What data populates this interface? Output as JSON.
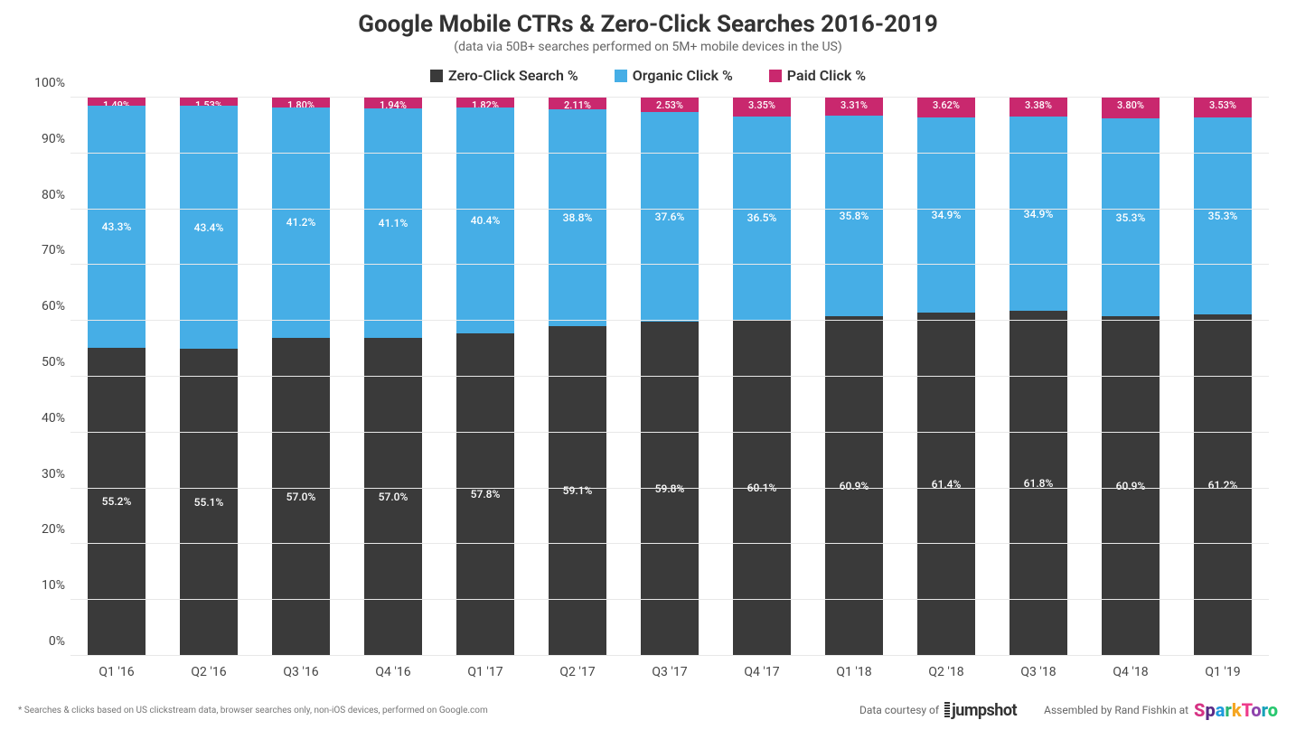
{
  "title": "Google Mobile CTRs & Zero-Click Searches 2016-2019",
  "subtitle": "(data via 50B+ searches performed on 5M+ mobile devices in the US)",
  "legend": [
    {
      "label": "Zero-Click Search %",
      "color": "#3a3a3a"
    },
    {
      "label": "Organic Click %",
      "color": "#46aee6"
    },
    {
      "label": "Paid Click %",
      "color": "#c9286e"
    }
  ],
  "chart": {
    "type": "stacked-bar",
    "ylim": [
      0,
      100
    ],
    "ytick_step": 10,
    "ytick_suffix": "%",
    "grid_color": "#e8e8e8",
    "background_color": "#ffffff",
    "bar_width_ratio": 0.62,
    "title_fontsize": 26,
    "subtitle_fontsize": 14,
    "axis_label_fontsize": 14,
    "segment_label_fontsize": 12,
    "series_colors": {
      "zero_click": "#3a3a3a",
      "organic": "#46aee6",
      "paid": "#c9286e"
    },
    "label_color": "#ffffff",
    "categories": [
      "Q1 '16",
      "Q2 '16",
      "Q3 '16",
      "Q4 '16",
      "Q1 '17",
      "Q2 '17",
      "Q3 '17",
      "Q4 '17",
      "Q1 '18",
      "Q2 '18",
      "Q3 '18",
      "Q4 '18",
      "Q1 '19"
    ],
    "data": [
      {
        "zero_click": 55.2,
        "organic": 43.3,
        "paid": 1.49,
        "paid_label": "1.49%",
        "zero_label": "55.2%",
        "org_label": "43.3%"
      },
      {
        "zero_click": 55.1,
        "organic": 43.4,
        "paid": 1.53,
        "paid_label": "1.53%",
        "zero_label": "55.1%",
        "org_label": "43.4%"
      },
      {
        "zero_click": 57.0,
        "organic": 41.2,
        "paid": 1.8,
        "paid_label": "1.80%",
        "zero_label": "57.0%",
        "org_label": "41.2%"
      },
      {
        "zero_click": 57.0,
        "organic": 41.1,
        "paid": 1.94,
        "paid_label": "1.94%",
        "zero_label": "57.0%",
        "org_label": "41.1%"
      },
      {
        "zero_click": 57.8,
        "organic": 40.4,
        "paid": 1.82,
        "paid_label": "1.82%",
        "zero_label": "57.8%",
        "org_label": "40.4%"
      },
      {
        "zero_click": 59.1,
        "organic": 38.8,
        "paid": 2.11,
        "paid_label": "2.11%",
        "zero_label": "59.1%",
        "org_label": "38.8%"
      },
      {
        "zero_click": 59.8,
        "organic": 37.6,
        "paid": 2.53,
        "paid_label": "2.53%",
        "zero_label": "59.8%",
        "org_label": "37.6%"
      },
      {
        "zero_click": 60.1,
        "organic": 36.5,
        "paid": 3.35,
        "paid_label": "3.35%",
        "zero_label": "60.1%",
        "org_label": "36.5%"
      },
      {
        "zero_click": 60.9,
        "organic": 35.8,
        "paid": 3.31,
        "paid_label": "3.31%",
        "zero_label": "60.9%",
        "org_label": "35.8%"
      },
      {
        "zero_click": 61.4,
        "organic": 34.9,
        "paid": 3.62,
        "paid_label": "3.62%",
        "zero_label": "61.4%",
        "org_label": "34.9%"
      },
      {
        "zero_click": 61.8,
        "organic": 34.9,
        "paid": 3.38,
        "paid_label": "3.38%",
        "zero_label": "61.8%",
        "org_label": "34.9%"
      },
      {
        "zero_click": 60.9,
        "organic": 35.3,
        "paid": 3.8,
        "paid_label": "3.80%",
        "zero_label": "60.9%",
        "org_label": "35.3%"
      },
      {
        "zero_click": 61.2,
        "organic": 35.3,
        "paid": 3.53,
        "paid_label": "3.53%",
        "zero_label": "61.2%",
        "org_label": "35.3%"
      }
    ]
  },
  "footnote": "* Searches & clicks based on US clickstream data, browser searches only, non-iOS devices, performed on Google.com",
  "credit1_prefix": "Data courtesy of",
  "credit1_brand": "jumpshot",
  "credit2_prefix": "Assembled by Rand Fishkin at",
  "credit2_brand": "SparkToro"
}
